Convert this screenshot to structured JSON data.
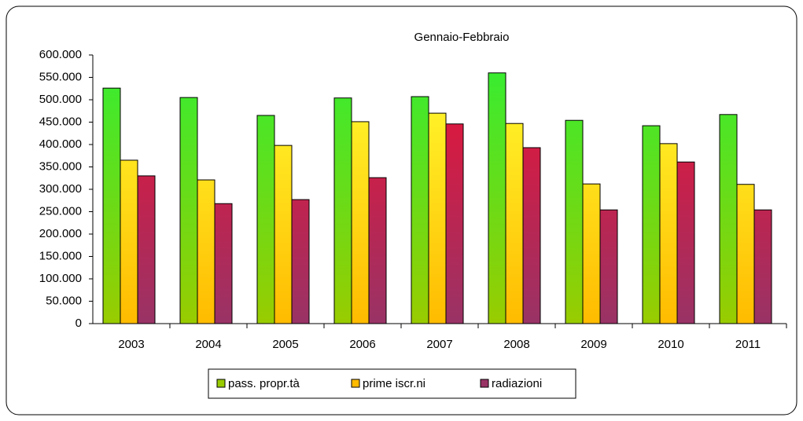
{
  "chart_data": {
    "type": "bar",
    "title": "Gennaio-Febbraio",
    "categories": [
      "2003",
      "2004",
      "2005",
      "2006",
      "2007",
      "2008",
      "2009",
      "2010",
      "2011"
    ],
    "series": [
      {
        "name": "pass. propr.tà",
        "color": "#33ee33",
        "values": [
          526000,
          505000,
          465000,
          504000,
          507000,
          560000,
          454000,
          442000,
          467000
        ]
      },
      {
        "name": "prime iscr.ni",
        "color": "#ffff33",
        "values": [
          365000,
          321000,
          398000,
          451000,
          470000,
          447000,
          312000,
          402000,
          311000
        ]
      },
      {
        "name": "radiazioni",
        "color": "#ee1133",
        "values": [
          330000,
          268000,
          277000,
          326000,
          446000,
          393000,
          254000,
          361000,
          254000
        ]
      }
    ],
    "ylim": [
      0,
      600000
    ],
    "yticks": [
      0,
      {
        "value": 50000,
        "label": "50.000"
      },
      {
        "value": 100000,
        "label": "100.000"
      },
      {
        "value": 150000,
        "label": "150.000"
      },
      {
        "value": 200000,
        "label": "200.000"
      },
      {
        "value": 250000,
        "label": "250.000"
      },
      {
        "value": 300000,
        "label": "300.000"
      },
      {
        "value": 350000,
        "label": "350.000"
      },
      {
        "value": 400000,
        "label": "400.000"
      },
      {
        "value": 450000,
        "label": "450.000"
      },
      {
        "value": 500000,
        "label": "500.000"
      },
      {
        "value": 550000,
        "label": "550.000"
      },
      {
        "value": 600000,
        "label": "600.000"
      }
    ],
    "grid": false,
    "legend": "bottom"
  }
}
